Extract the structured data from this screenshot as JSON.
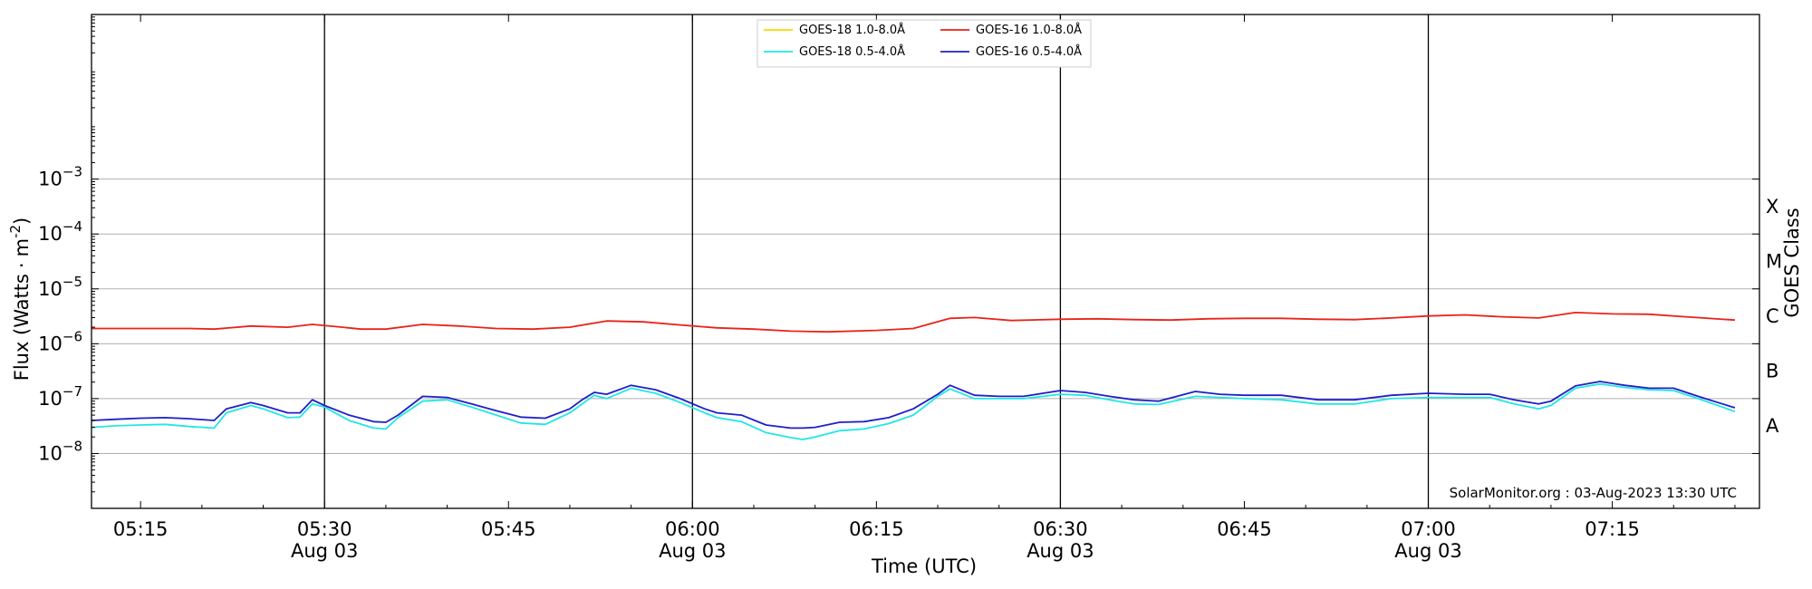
{
  "chart_data": {
    "type": "line",
    "title": "",
    "xlabel": "Time (UTC)",
    "ylabel_main": "Flux (Watts",
    "ylabel_unit": "m",
    "ylabel_sup": "-2",
    "y2label": "GOES Class",
    "annotation": "SolarMonitor.org : 03-Aug-2023 13:30 UTC",
    "xlim": [
      "05:11",
      "07:27"
    ],
    "ylim_exponent": [
      -9,
      0
    ],
    "y_scale": "log",
    "grid": "horizontal",
    "legend_position": "top-center",
    "x_ticks": [
      {
        "time": "05:15",
        "label": "05:15",
        "sub": ""
      },
      {
        "time": "05:30",
        "label": "05:30",
        "sub": "Aug 03"
      },
      {
        "time": "05:45",
        "label": "05:45",
        "sub": ""
      },
      {
        "time": "06:00",
        "label": "06:00",
        "sub": "Aug 03"
      },
      {
        "time": "06:15",
        "label": "06:15",
        "sub": ""
      },
      {
        "time": "06:30",
        "label": "06:30",
        "sub": "Aug 03"
      },
      {
        "time": "06:45",
        "label": "06:45",
        "sub": ""
      },
      {
        "time": "07:00",
        "label": "07:00",
        "sub": "Aug 03"
      },
      {
        "time": "07:15",
        "label": "07:15",
        "sub": ""
      }
    ],
    "day_lines": [
      "05:30",
      "06:00",
      "06:30",
      "07:00"
    ],
    "y_ticks": [
      {
        "exp": -3,
        "base": "10",
        "sup": "−3"
      },
      {
        "exp": -4,
        "base": "10",
        "sup": "−4"
      },
      {
        "exp": -5,
        "base": "10",
        "sup": "−5"
      },
      {
        "exp": -6,
        "base": "10",
        "sup": "−6"
      },
      {
        "exp": -7,
        "base": "10",
        "sup": "−7"
      },
      {
        "exp": -8,
        "base": "10",
        "sup": "−8"
      }
    ],
    "goes_classes": [
      {
        "label": "X",
        "exp": -3.5
      },
      {
        "label": "M",
        "exp": -4.5
      },
      {
        "label": "C",
        "exp": -5.5
      },
      {
        "label": "B",
        "exp": -6.5
      },
      {
        "label": "A",
        "exp": -7.5
      }
    ],
    "colors": {
      "goes18_long": "#ffd700",
      "goes16_long": "#e8231a",
      "goes18_short": "#22e6e6",
      "goes16_short": "#1f1fc8"
    },
    "series": [
      {
        "name": "GOES-18 1.0-8.0Å",
        "color_key": "goes18_long",
        "times": [],
        "values": []
      },
      {
        "name": "GOES-16 1.0-8.0Å",
        "color_key": "goes16_long",
        "times": [
          "05:11",
          "05:15",
          "05:19",
          "05:21",
          "05:24",
          "05:27",
          "05:29",
          "05:31",
          "05:33",
          "05:35",
          "05:38",
          "05:41",
          "05:44",
          "05:47",
          "05:50",
          "05:53",
          "05:56",
          "05:59",
          "06:02",
          "06:05",
          "06:08",
          "06:11",
          "06:15",
          "06:18",
          "06:21",
          "06:23",
          "06:26",
          "06:30",
          "06:33",
          "06:36",
          "06:39",
          "06:42",
          "06:45",
          "06:48",
          "06:51",
          "06:54",
          "06:57",
          "07:00",
          "07:03",
          "07:06",
          "07:09",
          "07:12",
          "07:15",
          "07:18",
          "07:21",
          "07:25"
        ],
        "values": [
          1.9e-06,
          1.9e-06,
          1.9e-06,
          1.85e-06,
          2.1e-06,
          2e-06,
          2.25e-06,
          2.05e-06,
          1.85e-06,
          1.85e-06,
          2.25e-06,
          2.1e-06,
          1.9e-06,
          1.85e-06,
          2e-06,
          2.6e-06,
          2.5e-06,
          2.2e-06,
          1.95e-06,
          1.85e-06,
          1.7e-06,
          1.65e-06,
          1.75e-06,
          1.9e-06,
          2.9e-06,
          3e-06,
          2.65e-06,
          2.8e-06,
          2.85e-06,
          2.75e-06,
          2.7e-06,
          2.85e-06,
          2.9e-06,
          2.9e-06,
          2.8e-06,
          2.75e-06,
          2.95e-06,
          3.2e-06,
          3.35e-06,
          3.1e-06,
          2.95e-06,
          3.7e-06,
          3.5e-06,
          3.45e-06,
          3.1e-06,
          2.7e-06
        ]
      },
      {
        "name": "GOES-18 0.5-4.0Å",
        "color_key": "goes18_short",
        "times": [
          "05:11",
          "05:13",
          "05:15",
          "05:17",
          "05:19",
          "05:21",
          "05:22",
          "05:24",
          "05:25",
          "05:27",
          "05:28",
          "05:29",
          "05:30",
          "05:32",
          "05:34",
          "05:35",
          "05:36",
          "05:38",
          "05:40",
          "05:42",
          "05:44",
          "05:46",
          "05:48",
          "05:50",
          "05:51",
          "05:52",
          "05:53",
          "05:55",
          "05:57",
          "05:59",
          "06:01",
          "06:02",
          "06:04",
          "06:06",
          "06:08",
          "06:09",
          "06:10",
          "06:12",
          "06:14",
          "06:16",
          "06:18",
          "06:20",
          "06:21",
          "06:23",
          "06:25",
          "06:27",
          "06:30",
          "06:32",
          "06:34",
          "06:36",
          "06:38",
          "06:41",
          "06:43",
          "06:45",
          "06:48",
          "06:51",
          "06:54",
          "06:57",
          "07:00",
          "07:03",
          "07:05",
          "07:07",
          "07:09",
          "07:10",
          "07:12",
          "07:14",
          "07:16",
          "07:18",
          "07:20",
          "07:22",
          "07:24",
          "07:25"
        ],
        "values": [
          3e-08,
          3.2e-08,
          3.3e-08,
          3.4e-08,
          3.1e-08,
          2.9e-08,
          5.5e-08,
          7.5e-08,
          6.5e-08,
          4.5e-08,
          4.6e-08,
          8e-08,
          7e-08,
          4e-08,
          2.9e-08,
          2.8e-08,
          4.5e-08,
          9e-08,
          9.5e-08,
          7e-08,
          5e-08,
          3.6e-08,
          3.4e-08,
          5.5e-08,
          8e-08,
          1.15e-07,
          1e-07,
          1.55e-07,
          1.25e-07,
          8.5e-08,
          5.5e-08,
          4.5e-08,
          3.8e-08,
          2.4e-08,
          1.95e-08,
          1.8e-08,
          2e-08,
          2.6e-08,
          2.8e-08,
          3.5e-08,
          5e-08,
          1.1e-07,
          1.5e-07,
          1e-07,
          1e-07,
          1e-07,
          1.2e-07,
          1.15e-07,
          9.5e-08,
          8e-08,
          7.8e-08,
          1.1e-07,
          1.05e-07,
          1e-07,
          9.5e-08,
          8e-08,
          8e-08,
          1e-07,
          1.05e-07,
          1.05e-07,
          1.05e-07,
          8e-08,
          6.5e-08,
          7.5e-08,
          1.55e-07,
          1.85e-07,
          1.6e-07,
          1.45e-07,
          1.4e-07,
          1e-07,
          7e-08,
          5.8e-08
        ]
      },
      {
        "name": "GOES-16 0.5-4.0Å",
        "color_key": "goes16_short",
        "times": [
          "05:11",
          "05:13",
          "05:15",
          "05:17",
          "05:19",
          "05:21",
          "05:22",
          "05:24",
          "05:25",
          "05:27",
          "05:28",
          "05:29",
          "05:30",
          "05:32",
          "05:34",
          "05:35",
          "05:36",
          "05:38",
          "05:40",
          "05:42",
          "05:44",
          "05:46",
          "05:48",
          "05:50",
          "05:51",
          "05:52",
          "05:53",
          "05:55",
          "05:57",
          "05:59",
          "06:01",
          "06:02",
          "06:04",
          "06:06",
          "06:08",
          "06:09",
          "06:10",
          "06:12",
          "06:14",
          "06:16",
          "06:18",
          "06:20",
          "06:21",
          "06:23",
          "06:25",
          "06:27",
          "06:30",
          "06:32",
          "06:34",
          "06:36",
          "06:38",
          "06:41",
          "06:43",
          "06:45",
          "06:48",
          "06:51",
          "06:54",
          "06:57",
          "07:00",
          "07:03",
          "07:05",
          "07:07",
          "07:09",
          "07:10",
          "07:12",
          "07:14",
          "07:16",
          "07:18",
          "07:20",
          "07:22",
          "07:24",
          "07:25"
        ],
        "values": [
          4e-08,
          4.2e-08,
          4.4e-08,
          4.5e-08,
          4.3e-08,
          4e-08,
          6.5e-08,
          8.5e-08,
          7.5e-08,
          5.5e-08,
          5.5e-08,
          9.5e-08,
          7.5e-08,
          5e-08,
          3.8e-08,
          3.7e-08,
          5e-08,
          1.1e-07,
          1.05e-07,
          8e-08,
          6e-08,
          4.6e-08,
          4.4e-08,
          6.5e-08,
          9.5e-08,
          1.3e-07,
          1.2e-07,
          1.75e-07,
          1.45e-07,
          1e-07,
          6.5e-08,
          5.5e-08,
          5e-08,
          3.3e-08,
          2.9e-08,
          2.9e-08,
          3e-08,
          3.7e-08,
          3.8e-08,
          4.5e-08,
          6.5e-08,
          1.2e-07,
          1.75e-07,
          1.15e-07,
          1.1e-07,
          1.1e-07,
          1.4e-07,
          1.3e-07,
          1.1e-07,
          9.5e-08,
          9e-08,
          1.35e-07,
          1.2e-07,
          1.15e-07,
          1.15e-07,
          9.5e-08,
          9.5e-08,
          1.15e-07,
          1.25e-07,
          1.2e-07,
          1.2e-07,
          9.5e-08,
          8e-08,
          9e-08,
          1.7e-07,
          2.05e-07,
          1.75e-07,
          1.55e-07,
          1.55e-07,
          1.1e-07,
          8e-08,
          6.8e-08
        ]
      }
    ]
  }
}
